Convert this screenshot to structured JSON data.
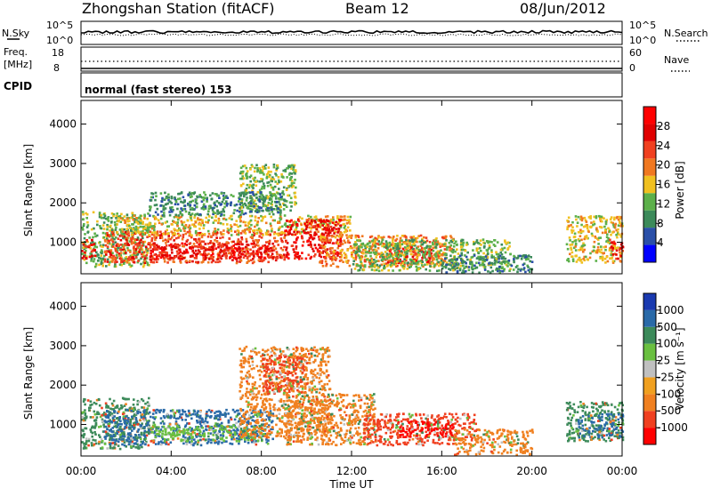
{
  "header": {
    "title": "Zhongshan Station (fitACF)",
    "beam": "Beam 12",
    "date": "08/Jun/2012"
  },
  "noise_panel": {
    "left_label": "N.Sky",
    "right_label": "N.Search",
    "left_ticks": [
      "10^5",
      "10^0"
    ],
    "right_ticks": [
      "10^5",
      "10^0"
    ]
  },
  "freq_panel": {
    "left_label_1": "Freq.",
    "left_label_2": "[MHz]",
    "right_label": "Nave",
    "left_ticks": [
      "18",
      "8"
    ],
    "right_ticks": [
      "60",
      "0"
    ],
    "cpid_label": "CPID"
  },
  "program_label": "normal (fast stereo) 153",
  "power_colorbar": {
    "label": "Power [dB]",
    "colors": [
      "#0000ff",
      "#2a4fa8",
      "#3c8a5a",
      "#5cb04a",
      "#f0c020",
      "#f07820",
      "#f04020",
      "#e00000",
      "#ff0000"
    ],
    "ticks": [
      "4",
      "8",
      "12",
      "16",
      "20",
      "24",
      "28"
    ]
  },
  "velocity_colorbar": {
    "label": "Velocity [m s⁻¹]",
    "colors": [
      "#ff0000",
      "#f04020",
      "#f08020",
      "#f0a020",
      "#c0c0c0",
      "#6ac040",
      "#3c8a5a",
      "#2a6aa8",
      "#1a3ab0"
    ],
    "ticks": [
      "-1000",
      "-500",
      "-100",
      "-25",
      "25",
      "100",
      "500",
      "1000"
    ]
  },
  "chart_data": [
    {
      "type": "heatmap",
      "parameter": "Power",
      "ylabel": "Slant Range [km]",
      "ylim": [
        200,
        4600
      ],
      "yticks": [
        "1000",
        "2000",
        "3000",
        "4000"
      ],
      "xlim": [
        0,
        24
      ],
      "blobs": [
        {
          "x": [
            0.0,
            3.0
          ],
          "y": [
            400,
            1800
          ],
          "level": 12
        },
        {
          "x": [
            0.0,
            0.6
          ],
          "y": [
            600,
            1100
          ],
          "level": 28
        },
        {
          "x": [
            1.0,
            9.0
          ],
          "y": [
            500,
            1300
          ],
          "level": 24
        },
        {
          "x": [
            3.0,
            8.5
          ],
          "y": [
            600,
            1000
          ],
          "level": 28
        },
        {
          "x": [
            1.5,
            12.0
          ],
          "y": [
            1200,
            1700
          ],
          "level": 16
        },
        {
          "x": [
            9.0,
            11.5
          ],
          "y": [
            600,
            1600
          ],
          "level": 28
        },
        {
          "x": [
            7.0,
            9.5
          ],
          "y": [
            1800,
            3000
          ],
          "level": 12
        },
        {
          "x": [
            3.0,
            9.0
          ],
          "y": [
            1700,
            2300
          ],
          "level": 8
        },
        {
          "x": [
            10.5,
            16.5
          ],
          "y": [
            400,
            1200
          ],
          "level": 20
        },
        {
          "x": [
            13.5,
            15.5
          ],
          "y": [
            500,
            900
          ],
          "level": 28
        },
        {
          "x": [
            12.0,
            19.0
          ],
          "y": [
            300,
            1100
          ],
          "level": 12
        },
        {
          "x": [
            16.0,
            20.0
          ],
          "y": [
            250,
            700
          ],
          "level": 8
        },
        {
          "x": [
            21.5,
            24.0
          ],
          "y": [
            500,
            1700
          ],
          "level": 16
        },
        {
          "x": [
            23.4,
            24.0
          ],
          "y": [
            600,
            1100
          ],
          "level": 28
        }
      ]
    },
    {
      "type": "heatmap",
      "parameter": "Velocity",
      "ylabel": "Slant Range [km]",
      "ylim": [
        200,
        4600
      ],
      "yticks": [
        "1000",
        "2000",
        "3000",
        "4000"
      ],
      "xlabel": "Time UT",
      "xlim": [
        0,
        24
      ],
      "xticks": [
        "00:00",
        "04:00",
        "08:00",
        "12:00",
        "16:00",
        "20:00",
        "00:00"
      ],
      "blobs": [
        {
          "x": [
            0.0,
            3.0
          ],
          "y": [
            400,
            1700
          ],
          "level": 500
        },
        {
          "x": [
            1.0,
            8.5
          ],
          "y": [
            500,
            1400
          ],
          "level": 1000
        },
        {
          "x": [
            3.0,
            8.0
          ],
          "y": [
            600,
            1000
          ],
          "level": 100
        },
        {
          "x": [
            7.0,
            11.0
          ],
          "y": [
            700,
            3000
          ],
          "level": -100
        },
        {
          "x": [
            8.0,
            10.0
          ],
          "y": [
            1800,
            2800
          ],
          "level": -500
        },
        {
          "x": [
            9.0,
            13.0
          ],
          "y": [
            500,
            1800
          ],
          "level": -100
        },
        {
          "x": [
            12.5,
            17.5
          ],
          "y": [
            500,
            1300
          ],
          "level": -500
        },
        {
          "x": [
            14.0,
            16.5
          ],
          "y": [
            700,
            1100
          ],
          "level": -1000
        },
        {
          "x": [
            16.5,
            20.0
          ],
          "y": [
            250,
            900
          ],
          "level": -100
        },
        {
          "x": [
            21.5,
            24.0
          ],
          "y": [
            600,
            1600
          ],
          "level": 500
        },
        {
          "x": [
            22.0,
            24.0
          ],
          "y": [
            700,
            1300
          ],
          "level": 1000
        }
      ]
    }
  ]
}
